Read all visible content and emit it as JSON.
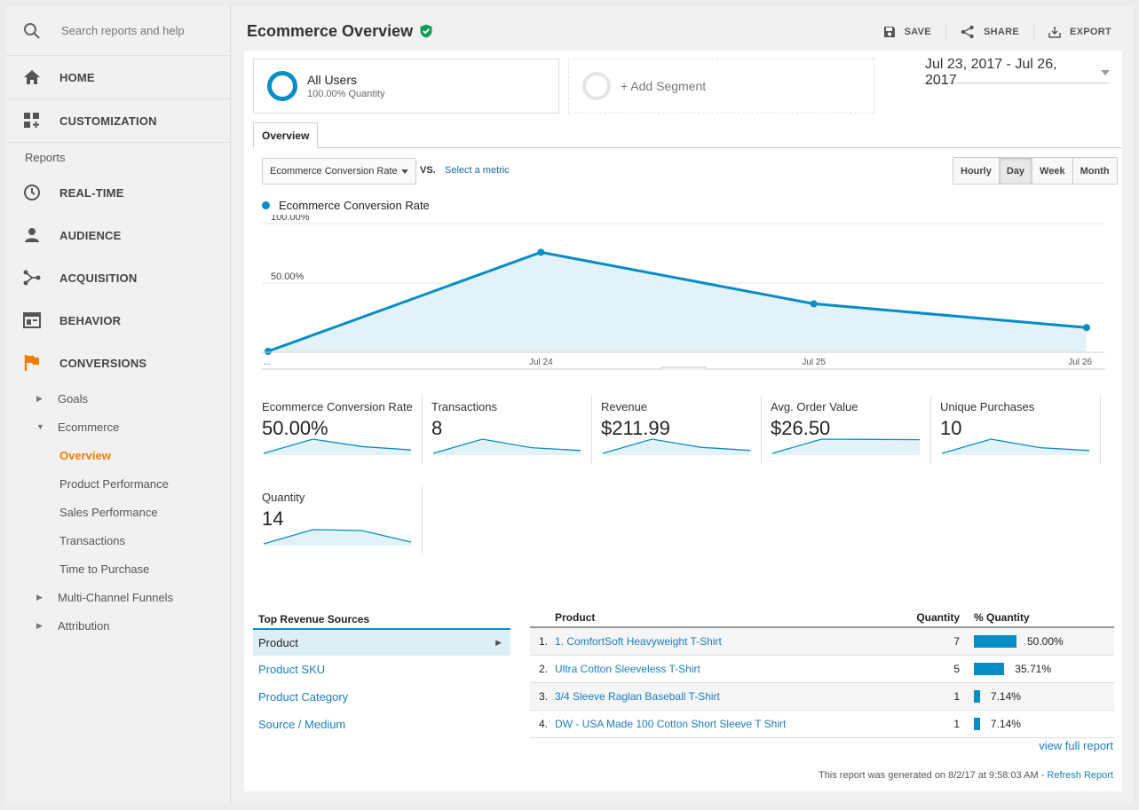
{
  "sidebar": {
    "search_placeholder": "Search reports and help",
    "home": "HOME",
    "customization": "CUSTOMIZATION",
    "reports_heading": "Reports",
    "realtime": "REAL-TIME",
    "audience": "AUDIENCE",
    "acquisition": "ACQUISITION",
    "behavior": "BEHAVIOR",
    "conversions": "CONVERSIONS",
    "goals": "Goals",
    "ecommerce": "Ecommerce",
    "ecommerce_items": [
      "Overview",
      "Product Performance",
      "Sales Performance",
      "Transactions",
      "Time to Purchase"
    ],
    "multichannel": "Multi-Channel Funnels",
    "attribution": "Attribution",
    "accent_color": "#f57c00"
  },
  "header": {
    "title": "Ecommerce Overview",
    "save": "SAVE",
    "share": "SHARE",
    "export": "EXPORT"
  },
  "segments": {
    "seg1_name": "All Users",
    "seg1_sub": "100.00% Quantity",
    "add_segment": "+ Add Segment"
  },
  "date_range": "Jul 23, 2017 - Jul 26, 2017",
  "tab": "Overview",
  "metric_select": "Ecommerce Conversion Rate",
  "vs": "VS.",
  "select_metric": "Select a metric",
  "granularity": [
    "Hourly",
    "Day",
    "Week",
    "Month"
  ],
  "granularity_active": "Day",
  "chart_legend": "Ecommerce Conversion Rate",
  "chart_data": {
    "type": "area",
    "x": [
      "Jul 23",
      "Jul 24",
      "Jul 25",
      "Jul 26"
    ],
    "x_tick_labels": [
      "...",
      "Jul 24",
      "Jul 25",
      "Jul 26"
    ],
    "y_tick_labels": [
      "100.00%",
      "50.00%"
    ],
    "series": [
      {
        "name": "Ecommerce Conversion Rate",
        "values": [
          0,
          83.33,
          40,
          20
        ]
      }
    ],
    "ylim": [
      0,
      100
    ],
    "color": "#058dc7"
  },
  "sparklines": [
    {
      "label": "Ecommerce Conversion Rate",
      "value": "50.00%",
      "values": [
        0,
        83.33,
        40,
        20
      ]
    },
    {
      "label": "Transactions",
      "value": "8",
      "values": [
        0,
        5,
        2,
        1
      ]
    },
    {
      "label": "Revenue",
      "value": "$211.99",
      "values": [
        0,
        130,
        55,
        27
      ]
    },
    {
      "label": "Avg. Order Value",
      "value": "$26.50",
      "values": [
        0,
        26,
        25.5,
        25
      ]
    },
    {
      "label": "Unique Purchases",
      "value": "10",
      "values": [
        0,
        5,
        2,
        1
      ]
    },
    {
      "label": "Quantity",
      "value": "14",
      "values": [
        0,
        8,
        7.5,
        1
      ]
    }
  ],
  "top_revenue": {
    "heading": "Top Revenue Sources",
    "items": [
      "Product",
      "Product SKU",
      "Product Category",
      "Source / Medium"
    ]
  },
  "product_table": {
    "headers": {
      "product": "Product",
      "quantity": "Quantity",
      "pct": "% Quantity"
    },
    "rows": [
      {
        "num": "1.",
        "product": "1. ComfortSoft Heavyweight T-Shirt",
        "qty": "7",
        "pct": "50.00%",
        "pct_value": 50.0
      },
      {
        "num": "2.",
        "product": "Ultra Cotton Sleeveless T-Shirt",
        "qty": "5",
        "pct": "35.71%",
        "pct_value": 35.71
      },
      {
        "num": "3.",
        "product": "3/4 Sleeve Raglan Baseball T-Shirt",
        "qty": "1",
        "pct": "7.14%",
        "pct_value": 7.14
      },
      {
        "num": "4.",
        "product": "DW - USA Made 100 Cotton Short Sleeve T Shirt",
        "qty": "1",
        "pct": "7.14%",
        "pct_value": 7.14
      }
    ]
  },
  "view_full": "view full report",
  "generated": "This report was generated on 8/2/17 at 9:58:03 AM - ",
  "refresh": "Refresh Report"
}
